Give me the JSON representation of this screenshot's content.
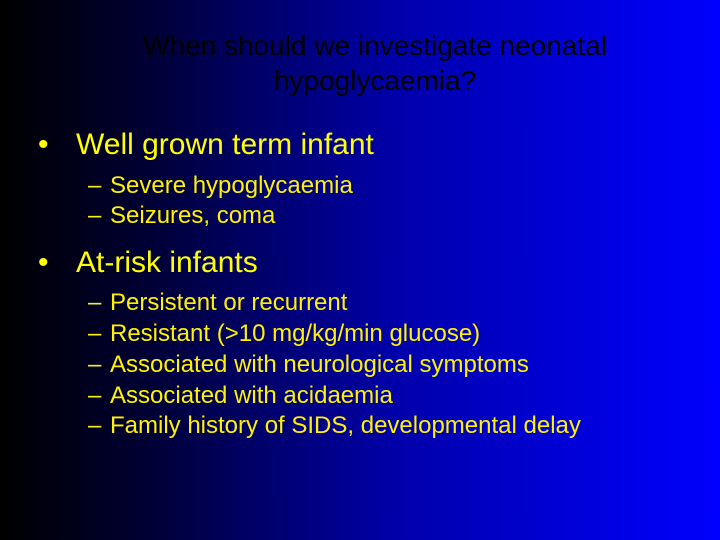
{
  "slide": {
    "title": "When should we investigate neonatal hypoglycaemia?",
    "title_color": "#000000",
    "title_fontsize": 28,
    "background_gradient": [
      "#000000",
      "#000033",
      "#0000aa",
      "#0000ff"
    ],
    "bullet_color": "#ffff00",
    "lvl1_fontsize": 30,
    "lvl2_fontsize": 24,
    "font_family": "Verdana",
    "items": [
      {
        "label": "Well grown term infant",
        "sub": [
          "Severe hypoglycaemia",
          "Seizures, coma"
        ]
      },
      {
        "label": "At-risk infants",
        "sub": [
          "Persistent or recurrent",
          "Resistant (>10 mg/kg/min glucose)",
          "Associated with neurological symptoms",
          "Associated with acidaemia",
          "Family history of SIDS, developmental delay"
        ]
      }
    ]
  }
}
